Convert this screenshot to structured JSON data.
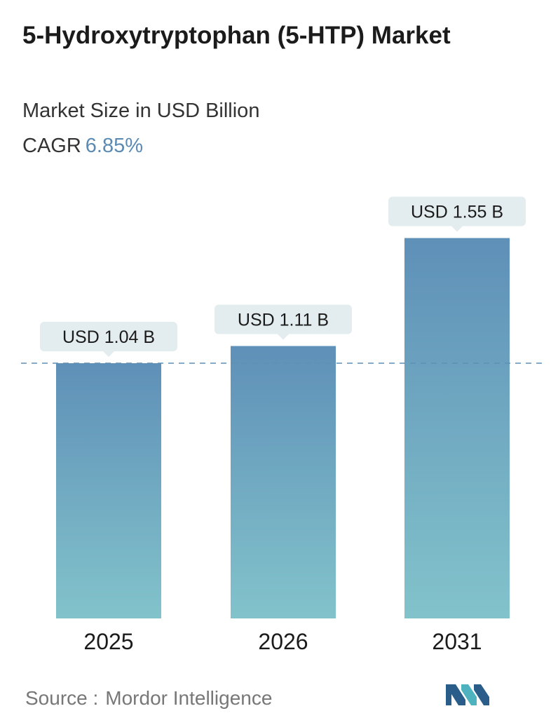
{
  "header": {
    "title": "5-Hydroxytryptophan (5-HTP) Market",
    "subtitle": "Market Size in USD Billion",
    "cagr_label": "CAGR",
    "cagr_value": "6.85%"
  },
  "chart_data": {
    "type": "bar",
    "title": "5-Hydroxytryptophan (5-HTP) Market",
    "subtitle": "Market Size in USD Billion",
    "categories": [
      "2025",
      "2026",
      "2031"
    ],
    "values": [
      1.04,
      1.11,
      1.55
    ],
    "data_labels": [
      "USD 1.04 B",
      "USD 1.11 B",
      "USD 1.55 B"
    ],
    "unit": "USD Billion",
    "reference_line_value": 1.04,
    "grid": false,
    "bar_gradient": [
      "#5f90b8",
      "#82c3cb"
    ],
    "label_bg": "#e3ecee",
    "reference_line_color": "#5f8fb5"
  },
  "footer": {
    "source_label": "Source :",
    "source_name": "Mordor Intelligence"
  },
  "colors": {
    "title": "#1b1b1b",
    "accent": "#5b8ab3",
    "logo_dark": "#2b5d8a",
    "logo_light": "#4fb3bf"
  }
}
